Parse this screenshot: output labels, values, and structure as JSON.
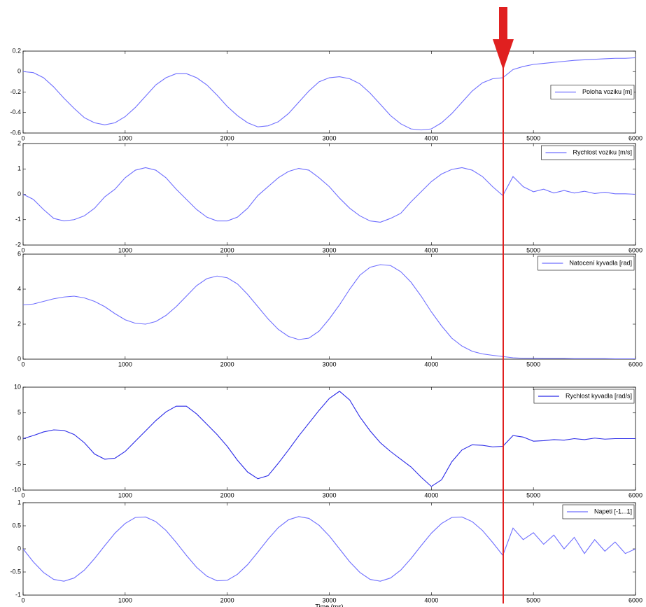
{
  "chart_data": [
    {
      "type": "line",
      "x": [
        0,
        100,
        200,
        300,
        400,
        500,
        600,
        700,
        800,
        900,
        1000,
        1100,
        1200,
        1300,
        1400,
        1500,
        1600,
        1700,
        1800,
        1900,
        2000,
        2100,
        2200,
        2300,
        2400,
        2500,
        2600,
        2700,
        2800,
        2900,
        3000,
        3100,
        3200,
        3300,
        3400,
        3500,
        3600,
        3700,
        3800,
        3900,
        4000,
        4100,
        4200,
        4300,
        4400,
        4500,
        4600,
        4700,
        4800,
        4900,
        5000,
        5100,
        5200,
        5300,
        5400,
        5500,
        5600,
        5700,
        5800,
        5900,
        6000
      ],
      "series": [
        {
          "name": "Poloha voziku [m]",
          "color": "#6f6fff",
          "values": [
            0,
            -0.01,
            -0.06,
            -0.15,
            -0.26,
            -0.36,
            -0.45,
            -0.5,
            -0.52,
            -0.5,
            -0.44,
            -0.35,
            -0.24,
            -0.13,
            -0.06,
            -0.02,
            -0.02,
            -0.06,
            -0.13,
            -0.23,
            -0.34,
            -0.43,
            -0.5,
            -0.54,
            -0.53,
            -0.49,
            -0.41,
            -0.3,
            -0.19,
            -0.1,
            -0.06,
            -0.05,
            -0.07,
            -0.12,
            -0.21,
            -0.32,
            -0.43,
            -0.51,
            -0.56,
            -0.57,
            -0.56,
            -0.5,
            -0.41,
            -0.3,
            -0.19,
            -0.11,
            -0.07,
            -0.06,
            0.02,
            0.05,
            0.07,
            0.08,
            0.09,
            0.1,
            0.11,
            0.115,
            0.12,
            0.125,
            0.13,
            0.13,
            0.135
          ]
        }
      ],
      "xlim": [
        0,
        6000
      ],
      "xticks": [
        0,
        1000,
        2000,
        3000,
        4000,
        5000,
        6000
      ],
      "ylim": [
        -0.6,
        0.2
      ],
      "yticks": [
        -0.6,
        -0.4,
        -0.2,
        0,
        0.2
      ],
      "legend": "right"
    },
    {
      "type": "line",
      "x": [
        0,
        100,
        200,
        300,
        400,
        500,
        600,
        700,
        800,
        900,
        1000,
        1100,
        1200,
        1300,
        1400,
        1500,
        1600,
        1700,
        1800,
        1900,
        2000,
        2100,
        2200,
        2300,
        2400,
        2500,
        2600,
        2700,
        2800,
        2900,
        3000,
        3100,
        3200,
        3300,
        3400,
        3500,
        3600,
        3700,
        3800,
        3900,
        4000,
        4100,
        4200,
        4300,
        4400,
        4500,
        4600,
        4700,
        4800,
        4900,
        5000,
        5100,
        5200,
        5300,
        5400,
        5500,
        5600,
        5700,
        5800,
        5900,
        6000
      ],
      "series": [
        {
          "name": "Rychlost voziku [m/s]",
          "color": "#6f6fff",
          "values": [
            0,
            -0.2,
            -0.6,
            -0.95,
            -1.05,
            -1,
            -0.85,
            -0.55,
            -0.1,
            0.2,
            0.65,
            0.95,
            1.05,
            0.95,
            0.65,
            0.2,
            -0.2,
            -0.6,
            -0.9,
            -1.05,
            -1.05,
            -0.9,
            -0.55,
            -0.05,
            0.3,
            0.65,
            0.9,
            1.02,
            0.95,
            0.65,
            0.3,
            -0.15,
            -0.55,
            -0.85,
            -1.05,
            -1.1,
            -0.95,
            -0.75,
            -0.3,
            0.1,
            0.5,
            0.8,
            0.98,
            1.05,
            0.95,
            0.7,
            0.3,
            -0.05,
            0.7,
            0.3,
            0.1,
            0.2,
            0.05,
            0.15,
            0.05,
            0.12,
            0.03,
            0.08,
            0.02,
            0.02,
            0
          ]
        }
      ],
      "xlim": [
        0,
        6000
      ],
      "xticks": [
        0,
        1000,
        2000,
        3000,
        4000,
        5000,
        6000
      ],
      "ylim": [
        -2,
        2
      ],
      "yticks": [
        -2,
        -1,
        0,
        1,
        2
      ],
      "legend": "upper right"
    },
    {
      "type": "line",
      "x": [
        0,
        100,
        200,
        300,
        400,
        500,
        600,
        700,
        800,
        900,
        1000,
        1100,
        1200,
        1300,
        1400,
        1500,
        1600,
        1700,
        1800,
        1900,
        2000,
        2100,
        2200,
        2300,
        2400,
        2500,
        2600,
        2700,
        2800,
        2900,
        3000,
        3100,
        3200,
        3300,
        3400,
        3500,
        3600,
        3700,
        3800,
        3900,
        4000,
        4100,
        4200,
        4300,
        4400,
        4500,
        4600,
        4700,
        4800,
        4900,
        5000,
        5100,
        5200,
        5300,
        5400,
        5500,
        5600,
        5700,
        5800,
        5900,
        6000
      ],
      "series": [
        {
          "name": "Natocení  kyvadla [rad]",
          "color": "#6f6fff",
          "values": [
            3.1,
            3.15,
            3.3,
            3.45,
            3.55,
            3.6,
            3.5,
            3.3,
            3,
            2.6,
            2.25,
            2.05,
            2,
            2.15,
            2.5,
            3,
            3.6,
            4.2,
            4.6,
            4.75,
            4.65,
            4.3,
            3.7,
            3,
            2.3,
            1.7,
            1.3,
            1.12,
            1.2,
            1.6,
            2.3,
            3.1,
            4,
            4.8,
            5.25,
            5.4,
            5.35,
            5,
            4.4,
            3.6,
            2.7,
            1.9,
            1.2,
            0.75,
            0.45,
            0.3,
            0.22,
            0.15,
            0.08,
            0.05,
            0.05,
            0.04,
            0.04,
            0.04,
            0.03,
            0.03,
            0.03,
            0.03,
            0.02,
            0.02,
            0.02
          ]
        }
      ],
      "xlim": [
        0,
        6000
      ],
      "xticks": [
        0,
        1000,
        2000,
        3000,
        4000,
        5000,
        6000
      ],
      "ylim": [
        0,
        6
      ],
      "yticks": [
        0,
        2,
        4,
        6
      ],
      "legend": "upper right"
    },
    {
      "type": "line",
      "x": [
        0,
        100,
        200,
        300,
        400,
        500,
        600,
        700,
        800,
        900,
        1000,
        1100,
        1200,
        1300,
        1400,
        1500,
        1600,
        1700,
        1800,
        1900,
        2000,
        2100,
        2200,
        2300,
        2400,
        2500,
        2600,
        2700,
        2800,
        2900,
        3000,
        3100,
        3200,
        3300,
        3400,
        3500,
        3600,
        3700,
        3800,
        3900,
        4000,
        4100,
        4200,
        4300,
        4400,
        4500,
        4600,
        4700,
        4800,
        4900,
        5000,
        5100,
        5200,
        5300,
        5400,
        5500,
        5600,
        5700,
        5800,
        5900,
        6000
      ],
      "series": [
        {
          "name": "Rychlost kyvadla [rad/s]",
          "color": "#2a2ae8",
          "values": [
            0,
            0.6,
            1.3,
            1.7,
            1.6,
            0.8,
            -0.8,
            -3,
            -4,
            -3.8,
            -2.5,
            -0.5,
            1.5,
            3.5,
            5.2,
            6.3,
            6.3,
            4.8,
            2.8,
            0.8,
            -1.5,
            -4.2,
            -6.5,
            -7.8,
            -7.2,
            -4.8,
            -2.2,
            0.5,
            3,
            5.5,
            7.8,
            9.2,
            7.5,
            4.2,
            1.5,
            -0.8,
            -2.5,
            -4,
            -5.5,
            -7.5,
            -9.3,
            -8,
            -4.5,
            -2.2,
            -1.2,
            -1.3,
            -1.6,
            -1.5,
            0.6,
            0.3,
            -0.5,
            -0.4,
            -0.2,
            -0.3,
            0,
            -0.2,
            0.1,
            -0.1,
            0,
            0,
            0
          ]
        }
      ],
      "xlim": [
        0,
        6000
      ],
      "xticks": [
        0,
        1000,
        2000,
        3000,
        4000,
        5000,
        6000
      ],
      "ylim": [
        -10,
        10
      ],
      "yticks": [
        -10,
        -5,
        0,
        5,
        10
      ],
      "legend": "upper right"
    },
    {
      "type": "line",
      "x": [
        0,
        100,
        200,
        300,
        400,
        500,
        600,
        700,
        800,
        900,
        1000,
        1100,
        1200,
        1300,
        1400,
        1500,
        1600,
        1700,
        1800,
        1900,
        2000,
        2100,
        2200,
        2300,
        2400,
        2500,
        2600,
        2700,
        2800,
        2900,
        3000,
        3100,
        3200,
        3300,
        3400,
        3500,
        3600,
        3700,
        3800,
        3900,
        4000,
        4100,
        4200,
        4300,
        4400,
        4500,
        4600,
        4700,
        4800,
        4900,
        5000,
        5100,
        5200,
        5300,
        5400,
        5500,
        5600,
        5700,
        5800,
        5900,
        6000
      ],
      "series": [
        {
          "name": "Napeti [-1...1]",
          "color": "#6f6fff",
          "values": [
            0,
            -0.28,
            -0.51,
            -0.66,
            -0.7,
            -0.63,
            -0.46,
            -0.21,
            0.07,
            0.34,
            0.55,
            0.68,
            0.69,
            0.59,
            0.4,
            0.14,
            -0.14,
            -0.4,
            -0.59,
            -0.69,
            -0.68,
            -0.55,
            -0.34,
            -0.07,
            0.21,
            0.46,
            0.63,
            0.7,
            0.66,
            0.51,
            0.28,
            0,
            -0.28,
            -0.51,
            -0.66,
            -0.7,
            -0.63,
            -0.46,
            -0.21,
            0.07,
            0.34,
            0.55,
            0.68,
            0.69,
            0.59,
            0.4,
            0.14,
            -0.14,
            0.45,
            0.2,
            0.35,
            0.1,
            0.3,
            0,
            0.25,
            -0.1,
            0.2,
            -0.05,
            0.15,
            -0.1,
            0
          ]
        }
      ],
      "xlim": [
        0,
        6000
      ],
      "xticks": [
        0,
        1000,
        2000,
        3000,
        4000,
        5000,
        6000
      ],
      "ylim": [
        -1,
        1
      ],
      "yticks": [
        -1,
        -0.5,
        0,
        0.5,
        1
      ],
      "xlabel": "Time (ms)",
      "legend": "upper right"
    }
  ]
}
